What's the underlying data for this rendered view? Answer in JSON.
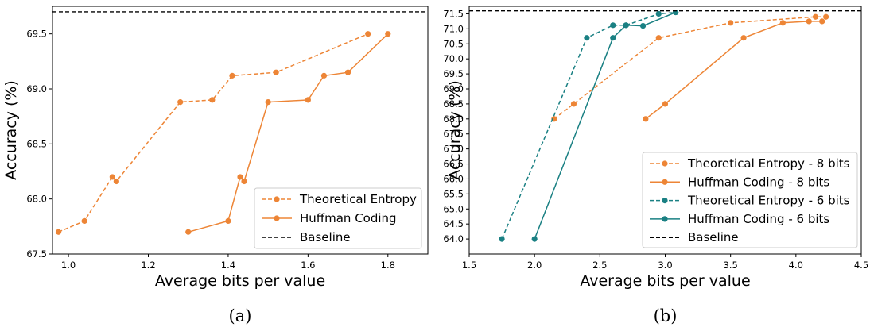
{
  "chart_data": [
    {
      "type": "line",
      "caption": "(a)",
      "xlabel": "Average bits per value",
      "ylabel": "Accuracy (%)",
      "xlim": [
        0.96,
        1.9
      ],
      "ylim": [
        67.5,
        69.75
      ],
      "xticks": [
        "1.0",
        "1.2",
        "1.4",
        "1.6",
        "1.8"
      ],
      "xtick_values": [
        1.0,
        1.2,
        1.4,
        1.6,
        1.8
      ],
      "yticks": [
        "67.5",
        "68.0",
        "68.5",
        "69.0",
        "69.5"
      ],
      "ytick_values": [
        67.5,
        68.0,
        68.5,
        69.0,
        69.5
      ],
      "grid": false,
      "legend_position": "bottom-right",
      "series": [
        {
          "name": "Theoretical Entropy",
          "color": "#ED8536",
          "style": "dashed",
          "marker": "circle",
          "x": [
            0.975,
            1.04,
            1.11,
            1.12,
            1.28,
            1.36,
            1.41,
            1.52,
            1.75
          ],
          "y": [
            67.7,
            67.8,
            68.2,
            68.16,
            68.88,
            68.9,
            69.12,
            69.15,
            69.5
          ]
        },
        {
          "name": "Huffman Coding",
          "color": "#ED8536",
          "style": "solid",
          "marker": "circle",
          "x": [
            1.3,
            1.4,
            1.43,
            1.44,
            1.5,
            1.6,
            1.64,
            1.7,
            1.8
          ],
          "y": [
            67.7,
            67.8,
            68.2,
            68.16,
            68.88,
            68.9,
            69.12,
            69.15,
            69.5
          ]
        },
        {
          "name": "Baseline",
          "color": "#000000",
          "style": "dashed",
          "marker": "none",
          "hline": 69.7
        }
      ]
    },
    {
      "type": "line",
      "caption": "(b)",
      "xlabel": "Average bits per value",
      "ylabel": "Accuracy (%)",
      "xlim": [
        1.5,
        4.5
      ],
      "ylim": [
        63.5,
        71.75
      ],
      "xticks": [
        "1.5",
        "2.0",
        "2.5",
        "3.0",
        "3.5",
        "4.0",
        "4.5"
      ],
      "xtick_values": [
        1.5,
        2.0,
        2.5,
        3.0,
        3.5,
        4.0,
        4.5
      ],
      "yticks": [
        "64.0",
        "64.5",
        "65.0",
        "65.5",
        "66.0",
        "66.5",
        "67.0",
        "67.5",
        "68.0",
        "68.5",
        "69.0",
        "69.5",
        "70.0",
        "70.5",
        "71.0",
        "71.5"
      ],
      "ytick_values": [
        64.0,
        64.5,
        65.0,
        65.5,
        66.0,
        66.5,
        67.0,
        67.5,
        68.0,
        68.5,
        69.0,
        69.5,
        70.0,
        70.5,
        71.0,
        71.5
      ],
      "grid": false,
      "legend_position": "bottom-right",
      "series": [
        {
          "name": "Theoretical Entropy - 8 bits",
          "color": "#ED8536",
          "style": "dashed",
          "marker": "circle",
          "x": [
            2.15,
            2.3,
            2.95,
            3.5,
            4.15,
            4.23
          ],
          "y": [
            68.0,
            68.5,
            70.7,
            71.2,
            71.4,
            71.4
          ]
        },
        {
          "name": "Huffman Coding - 8 bits",
          "color": "#ED8536",
          "style": "solid",
          "marker": "circle",
          "x": [
            2.85,
            3.0,
            3.6,
            3.9,
            4.1,
            4.2
          ],
          "y": [
            68.0,
            68.5,
            70.7,
            71.2,
            71.25,
            71.25
          ]
        },
        {
          "name": "Theoretical Entropy - 6 bits",
          "color": "#1A8083",
          "style": "dashed",
          "marker": "circle",
          "x": [
            1.75,
            2.4,
            2.6,
            2.7,
            2.95,
            3.08
          ],
          "y": [
            64.0,
            70.7,
            71.12,
            71.12,
            71.5,
            71.55
          ]
        },
        {
          "name": "Huffman Coding - 6 bits",
          "color": "#1A8083",
          "style": "solid",
          "marker": "circle",
          "x": [
            2.0,
            2.6,
            2.7,
            2.83,
            3.08
          ],
          "y": [
            64.0,
            70.7,
            71.12,
            71.1,
            71.55
          ]
        },
        {
          "name": "Baseline",
          "color": "#000000",
          "style": "dashed",
          "marker": "none",
          "hline": 71.6
        }
      ]
    }
  ]
}
